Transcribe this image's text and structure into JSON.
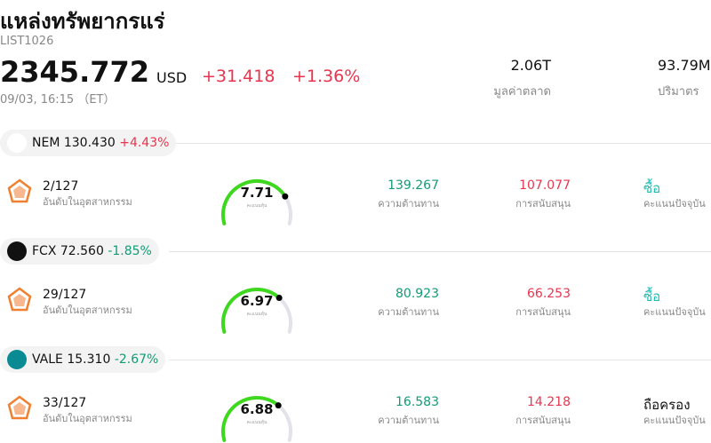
{
  "header": {
    "title": "แหล่งทรัพยากรแร่",
    "code": "LIST1026",
    "price": "2345.772",
    "currency": "USD",
    "change": "+31.418",
    "change_pct": "+1.36%",
    "time": "09/03, 16:15 （ET）",
    "stats": [
      {
        "value": "2.06T",
        "label": "มูลค่าตลาด"
      },
      {
        "value": "93.79M",
        "label": "ปริมาตร"
      }
    ]
  },
  "stocks": [
    {
      "ticker": "NEM",
      "price": "130.430",
      "change": "+4.43%",
      "change_color": "#e8344e",
      "rank": "2/127",
      "rank_label": "อันดับในอุตสาหกรรม",
      "score": 7.71,
      "score_caption": "คะแนนหุ้น",
      "resistance": "139.267",
      "resistance_label": "ความต้านทาน",
      "support": "107.077",
      "support_label": "การสนับสนุน",
      "rating": "ซื้อ",
      "rating_color": "#22b8b0",
      "rating_label": "คะแนนปัจจุบัน"
    },
    {
      "ticker": "FCX",
      "price": "72.560",
      "change": "-1.85%",
      "change_color": "#119b76",
      "rank": "29/127",
      "rank_label": "อันดับในอุตสาหกรรม",
      "score": 6.97,
      "score_caption": "คะแนนหุ้น",
      "resistance": "80.923",
      "resistance_label": "ความต้านทาน",
      "support": "66.253",
      "support_label": "การสนับสนุน",
      "rating": "ซื้อ",
      "rating_color": "#22b8b0",
      "rating_label": "คะแนนปัจจุบัน"
    },
    {
      "ticker": "VALE",
      "price": "15.310",
      "change": "-2.67%",
      "change_color": "#119b76",
      "rank": "33/127",
      "rank_label": "อันดับในอุตสาหกรรม",
      "score": 6.88,
      "score_caption": "คะแนนหุ้น",
      "resistance": "16.583",
      "resistance_label": "ความต้านทาน",
      "support": "14.218",
      "support_label": "การสนับสนุน",
      "rating": "ถือครอง",
      "rating_color": "#111111",
      "rating_label": "คะแนนปัจจุบัน"
    }
  ]
}
